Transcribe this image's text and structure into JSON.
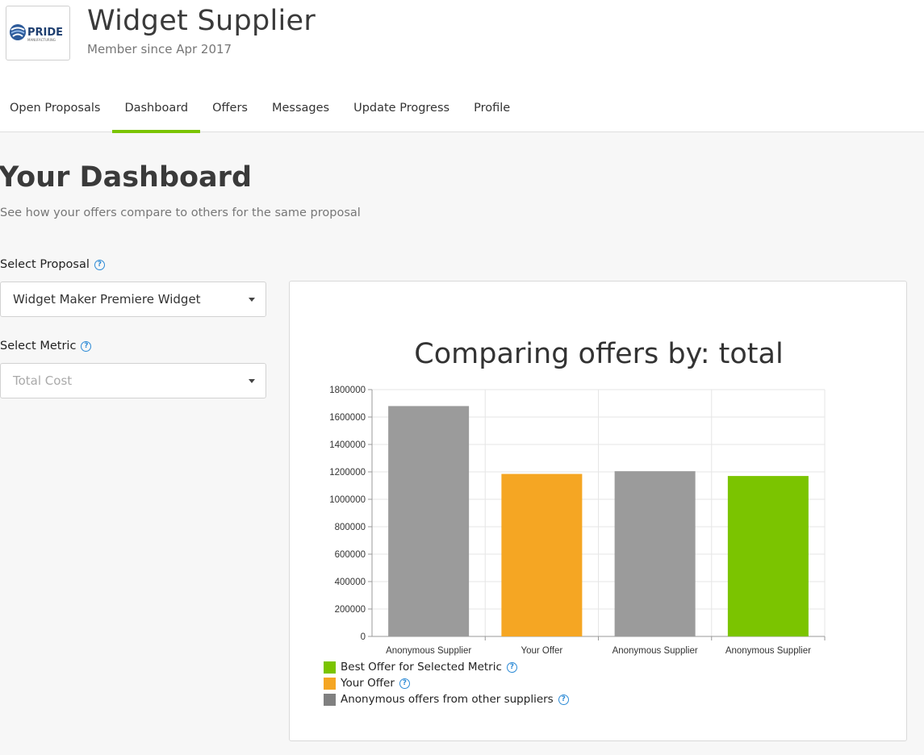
{
  "header": {
    "logo_text": "PRIDE",
    "logo_subtext": "MANUFACTURING",
    "company_name": "Widget Supplier",
    "member_since": "Member since Apr 2017"
  },
  "nav": {
    "tabs": [
      {
        "label": "Open Proposals",
        "active": false
      },
      {
        "label": "Dashboard",
        "active": true
      },
      {
        "label": "Offers",
        "active": false
      },
      {
        "label": "Messages",
        "active": false
      },
      {
        "label": "Update Progress",
        "active": false
      },
      {
        "label": "Profile",
        "active": false
      }
    ]
  },
  "page": {
    "title": "Your Dashboard",
    "subtitle": "See how your offers compare to others for the same proposal"
  },
  "form": {
    "proposal_label": "Select Proposal",
    "proposal_value": "Widget Maker Premiere Widget",
    "metric_label": "Select Metric",
    "metric_value": "Total Cost"
  },
  "icons": {
    "help": "question-circle-icon",
    "dropdown": "caret-down-icon",
    "logo": "pride-logo-icon"
  },
  "colors": {
    "accent": "#7bc400",
    "best": "#7bc400",
    "yours": "#f5a623",
    "anonymous": "#9b9b9b",
    "help": "#2e8bd6"
  },
  "chart_data": {
    "type": "bar",
    "title": "Comparing offers by: total",
    "categories": [
      "Anonymous Supplier",
      "Your Offer",
      "Anonymous Supplier",
      "Anonymous Supplier"
    ],
    "values": [
      1680000,
      1185000,
      1205000,
      1170000
    ],
    "bar_colors": [
      "#9b9b9b",
      "#f5a623",
      "#9b9b9b",
      "#7bc400"
    ],
    "ylim": [
      0,
      1800000
    ],
    "yticks": [
      0,
      200000,
      400000,
      600000,
      800000,
      1000000,
      1200000,
      1400000,
      1600000,
      1800000
    ],
    "grid": true,
    "legend": [
      {
        "label": "Best Offer for Selected Metric",
        "color": "#7bc400"
      },
      {
        "label": "Your Offer",
        "color": "#f5a623"
      },
      {
        "label": "Anonymous offers from other suppliers",
        "color": "#808080"
      }
    ],
    "legend_position": "bottom-left"
  }
}
